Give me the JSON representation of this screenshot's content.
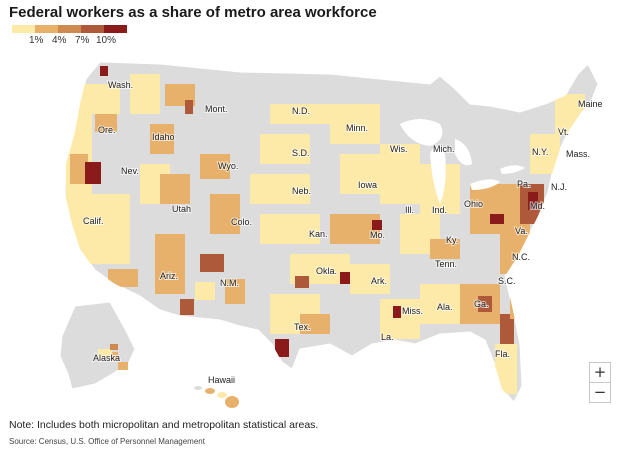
{
  "title": "Federal workers as a share of metro area workforce",
  "legend": {
    "ticks": [
      "1%",
      "4%",
      "7%",
      "10%"
    ],
    "colors": [
      "#fde9a8",
      "#e7b16b",
      "#cf8a4f",
      "#ae5a3a",
      "#8b1a1a"
    ]
  },
  "colors": {
    "land": "#dcdcdc",
    "border": "#ffffff",
    "water": "#ffffff"
  },
  "state_labels": [
    "Wash.",
    "Mont.",
    "N.D.",
    "Minn.",
    "Maine",
    "Ore.",
    "Idaho",
    "Vt.",
    "S.D.",
    "Wis.",
    "Mich.",
    "N.Y.",
    "Mass.",
    "Wyo.",
    "Neb.",
    "Iowa",
    "Pa.",
    "N.J.",
    "Nev.",
    "Utah",
    "Ill.",
    "Ind.",
    "Ohio",
    "Md.",
    "Calif.",
    "Colo.",
    "Kan.",
    "Mo.",
    "Ky.",
    "Va.",
    "N.C.",
    "Tenn.",
    "Okla.",
    "Ark.",
    "Ariz.",
    "N.M.",
    "S.C.",
    "Ga.",
    "Miss.",
    "Ala.",
    "Tex.",
    "La.",
    "Fla.",
    "Alaska",
    "Hawaii"
  ],
  "zoom": {
    "in_label": "+",
    "out_label": "−"
  },
  "note": "Note: Includes both micropolitan and metropolitan statistical areas.",
  "source": "Source: Census, U.S. Office of Personnel Management"
}
